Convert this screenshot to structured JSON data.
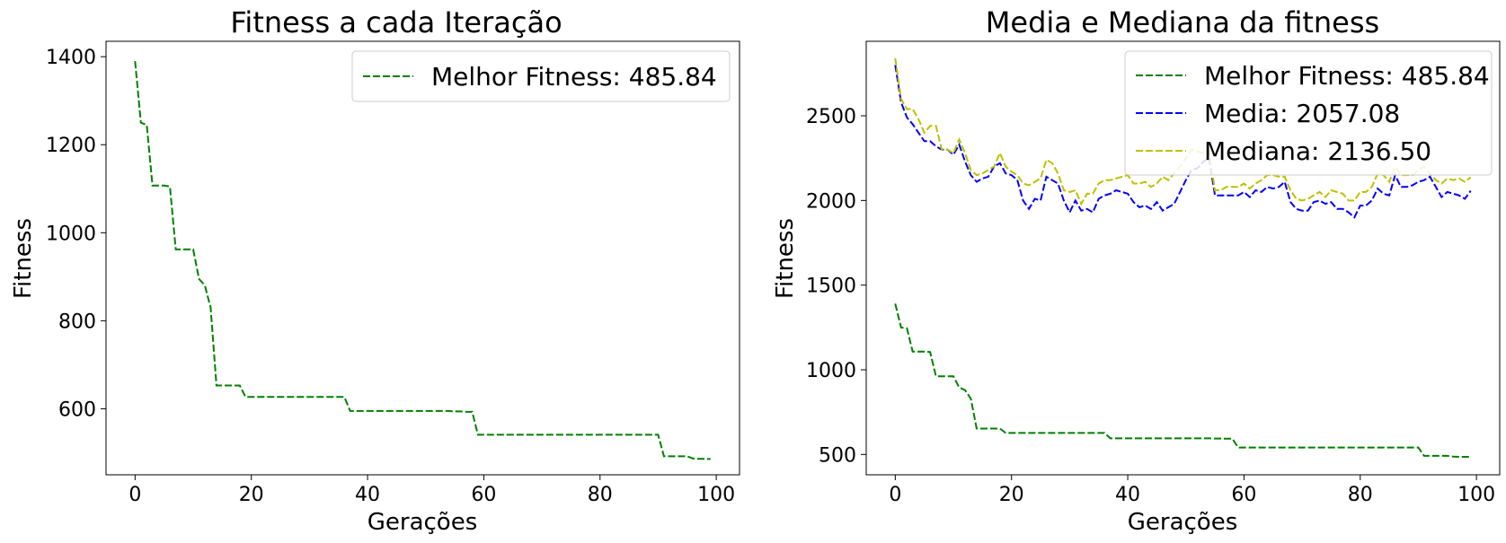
{
  "chart_data": [
    {
      "type": "line",
      "title": "Fitness a cada Iteração",
      "xlabel": "Gerações",
      "ylabel": "Fitness",
      "xlim": [
        -5,
        104
      ],
      "ylim": [
        450,
        1435
      ],
      "xticks": [
        0,
        20,
        40,
        60,
        80,
        100
      ],
      "yticks": [
        600,
        800,
        1000,
        1200,
        1400
      ],
      "grid": false,
      "legend_position": "top-right",
      "series": [
        {
          "name": "Melhor Fitness: 485.84",
          "color": "#008000",
          "style": "dashed",
          "x": [
            0,
            1,
            2,
            3,
            4,
            5,
            6,
            7,
            8,
            9,
            10,
            11,
            12,
            13,
            14,
            15,
            16,
            17,
            18,
            19,
            20,
            21,
            22,
            23,
            24,
            25,
            26,
            27,
            28,
            29,
            30,
            31,
            32,
            33,
            34,
            35,
            36,
            37,
            38,
            39,
            40,
            41,
            42,
            43,
            44,
            45,
            46,
            47,
            48,
            49,
            50,
            51,
            52,
            53,
            54,
            55,
            56,
            57,
            58,
            59,
            60,
            61,
            62,
            63,
            64,
            65,
            66,
            67,
            68,
            69,
            70,
            71,
            72,
            73,
            74,
            75,
            76,
            77,
            78,
            79,
            80,
            81,
            82,
            83,
            84,
            85,
            86,
            87,
            88,
            89,
            90,
            91,
            92,
            93,
            94,
            95,
            96,
            97,
            98,
            99
          ],
          "y": [
            1390,
            1250,
            1245,
            1107,
            1107,
            1107,
            1105,
            962,
            962,
            962,
            962,
            895,
            880,
            830,
            653,
            653,
            653,
            653,
            653,
            627,
            627,
            627,
            627,
            627,
            627,
            627,
            627,
            627,
            627,
            627,
            627,
            627,
            627,
            627,
            627,
            627,
            627,
            595,
            595,
            595,
            595,
            595,
            595,
            595,
            595,
            595,
            595,
            595,
            595,
            595,
            595,
            595,
            595,
            595,
            595,
            594,
            594,
            593,
            593,
            541,
            541,
            541,
            541,
            541,
            541,
            541,
            541,
            541,
            541,
            541,
            541,
            541,
            541,
            541,
            541,
            541,
            541,
            541,
            541,
            541,
            541,
            541,
            541,
            541,
            541,
            541,
            541,
            541,
            541,
            541,
            541,
            492,
            492,
            492,
            492,
            492,
            487,
            486,
            486,
            485.84
          ]
        }
      ]
    },
    {
      "type": "line",
      "title": "Media e Mediana da fitness",
      "xlabel": "Gerações",
      "ylabel": "Fitness",
      "xlim": [
        -5,
        104
      ],
      "ylim": [
        380,
        2940
      ],
      "xticks": [
        0,
        20,
        40,
        60,
        80,
        100
      ],
      "yticks": [
        500,
        1000,
        1500,
        2000,
        2500
      ],
      "grid": false,
      "legend_position": "top-right",
      "series": [
        {
          "name": "Melhor Fitness: 485.84",
          "color": "#008000",
          "style": "dashed",
          "x": [
            0,
            1,
            2,
            3,
            4,
            5,
            6,
            7,
            8,
            9,
            10,
            11,
            12,
            13,
            14,
            15,
            16,
            17,
            18,
            19,
            20,
            21,
            22,
            23,
            24,
            25,
            26,
            27,
            28,
            29,
            30,
            31,
            32,
            33,
            34,
            35,
            36,
            37,
            38,
            39,
            40,
            41,
            42,
            43,
            44,
            45,
            46,
            47,
            48,
            49,
            50,
            51,
            52,
            53,
            54,
            55,
            56,
            57,
            58,
            59,
            60,
            61,
            62,
            63,
            64,
            65,
            66,
            67,
            68,
            69,
            70,
            71,
            72,
            73,
            74,
            75,
            76,
            77,
            78,
            79,
            80,
            81,
            82,
            83,
            84,
            85,
            86,
            87,
            88,
            89,
            90,
            91,
            92,
            93,
            94,
            95,
            96,
            97,
            98,
            99
          ],
          "y": [
            1390,
            1250,
            1245,
            1107,
            1107,
            1107,
            1105,
            962,
            962,
            962,
            962,
            895,
            880,
            830,
            653,
            653,
            653,
            653,
            653,
            627,
            627,
            627,
            627,
            627,
            627,
            627,
            627,
            627,
            627,
            627,
            627,
            627,
            627,
            627,
            627,
            627,
            627,
            595,
            595,
            595,
            595,
            595,
            595,
            595,
            595,
            595,
            595,
            595,
            595,
            595,
            595,
            595,
            595,
            595,
            595,
            594,
            594,
            593,
            593,
            541,
            541,
            541,
            541,
            541,
            541,
            541,
            541,
            541,
            541,
            541,
            541,
            541,
            541,
            541,
            541,
            541,
            541,
            541,
            541,
            541,
            541,
            541,
            541,
            541,
            541,
            541,
            541,
            541,
            541,
            541,
            541,
            492,
            492,
            492,
            492,
            492,
            487,
            486,
            486,
            485.84
          ]
        },
        {
          "name": "Media: 2057.08",
          "color": "#0000ff",
          "style": "dashed",
          "x": [
            0,
            1,
            2,
            3,
            4,
            5,
            6,
            7,
            8,
            9,
            10,
            11,
            12,
            13,
            14,
            15,
            16,
            17,
            18,
            19,
            20,
            21,
            22,
            23,
            24,
            25,
            26,
            27,
            28,
            29,
            30,
            31,
            32,
            33,
            34,
            35,
            36,
            37,
            38,
            39,
            40,
            41,
            42,
            43,
            44,
            45,
            46,
            47,
            48,
            49,
            50,
            51,
            52,
            53,
            54,
            55,
            56,
            57,
            58,
            59,
            60,
            61,
            62,
            63,
            64,
            65,
            66,
            67,
            68,
            69,
            70,
            71,
            72,
            73,
            74,
            75,
            76,
            77,
            78,
            79,
            80,
            81,
            82,
            83,
            84,
            85,
            86,
            87,
            88,
            89,
            90,
            91,
            92,
            93,
            94,
            95,
            96,
            97,
            98,
            99
          ],
          "y": [
            2800,
            2580,
            2490,
            2450,
            2400,
            2350,
            2350,
            2320,
            2300,
            2300,
            2270,
            2330,
            2230,
            2150,
            2110,
            2130,
            2140,
            2200,
            2220,
            2160,
            2150,
            2120,
            2000,
            1950,
            2010,
            2000,
            2140,
            2120,
            2100,
            2000,
            1930,
            2000,
            1940,
            1950,
            1930,
            2010,
            2030,
            2040,
            2060,
            2050,
            2040,
            1990,
            1960,
            1970,
            1950,
            1990,
            1940,
            1960,
            1980,
            2050,
            2120,
            2180,
            2190,
            2230,
            2250,
            2030,
            2030,
            2030,
            2030,
            2030,
            2050,
            2020,
            2060,
            2050,
            2080,
            2070,
            2080,
            2110,
            1990,
            1950,
            1940,
            1940,
            1990,
            2000,
            1980,
            1990,
            1950,
            1950,
            1930,
            1900,
            1970,
            1970,
            2000,
            2070,
            2040,
            2030,
            2150,
            2080,
            2080,
            2090,
            2110,
            2120,
            2140,
            2080,
            2020,
            2050,
            2040,
            2030,
            2010,
            2057.08
          ]
        },
        {
          "name": "Mediana: 2136.50",
          "color": "#bfbf00",
          "style": "dashed",
          "x": [
            0,
            1,
            2,
            3,
            4,
            5,
            6,
            7,
            8,
            9,
            10,
            11,
            12,
            13,
            14,
            15,
            16,
            17,
            18,
            19,
            20,
            21,
            22,
            23,
            24,
            25,
            26,
            27,
            28,
            29,
            30,
            31,
            32,
            33,
            34,
            35,
            36,
            37,
            38,
            39,
            40,
            41,
            42,
            43,
            44,
            45,
            46,
            47,
            48,
            49,
            50,
            51,
            52,
            53,
            54,
            55,
            56,
            57,
            58,
            59,
            60,
            61,
            62,
            63,
            64,
            65,
            66,
            67,
            68,
            69,
            70,
            71,
            72,
            73,
            74,
            75,
            76,
            77,
            78,
            79,
            80,
            81,
            82,
            83,
            84,
            85,
            86,
            87,
            88,
            89,
            90,
            91,
            92,
            93,
            94,
            95,
            96,
            97,
            98,
            99
          ],
          "y": [
            2840,
            2600,
            2540,
            2540,
            2480,
            2400,
            2440,
            2440,
            2300,
            2300,
            2280,
            2360,
            2280,
            2180,
            2150,
            2160,
            2180,
            2200,
            2280,
            2200,
            2170,
            2150,
            2100,
            2090,
            2110,
            2130,
            2240,
            2220,
            2160,
            2060,
            2050,
            2060,
            1980,
            2040,
            2040,
            2100,
            2120,
            2120,
            2130,
            2140,
            2150,
            2100,
            2100,
            2110,
            2080,
            2100,
            2140,
            2120,
            2160,
            2200,
            2250,
            2300,
            2290,
            2280,
            2290,
            2060,
            2060,
            2080,
            2080,
            2080,
            2100,
            2070,
            2100,
            2120,
            2150,
            2150,
            2140,
            2140,
            2060,
            2010,
            2000,
            2010,
            2030,
            2050,
            2020,
            2060,
            2050,
            2040,
            2000,
            2000,
            2050,
            2050,
            2080,
            2160,
            2150,
            2110,
            2200,
            2150,
            2150,
            2150,
            2180,
            2200,
            2160,
            2120,
            2100,
            2130,
            2120,
            2130,
            2110,
            2136.5
          ]
        }
      ]
    }
  ]
}
